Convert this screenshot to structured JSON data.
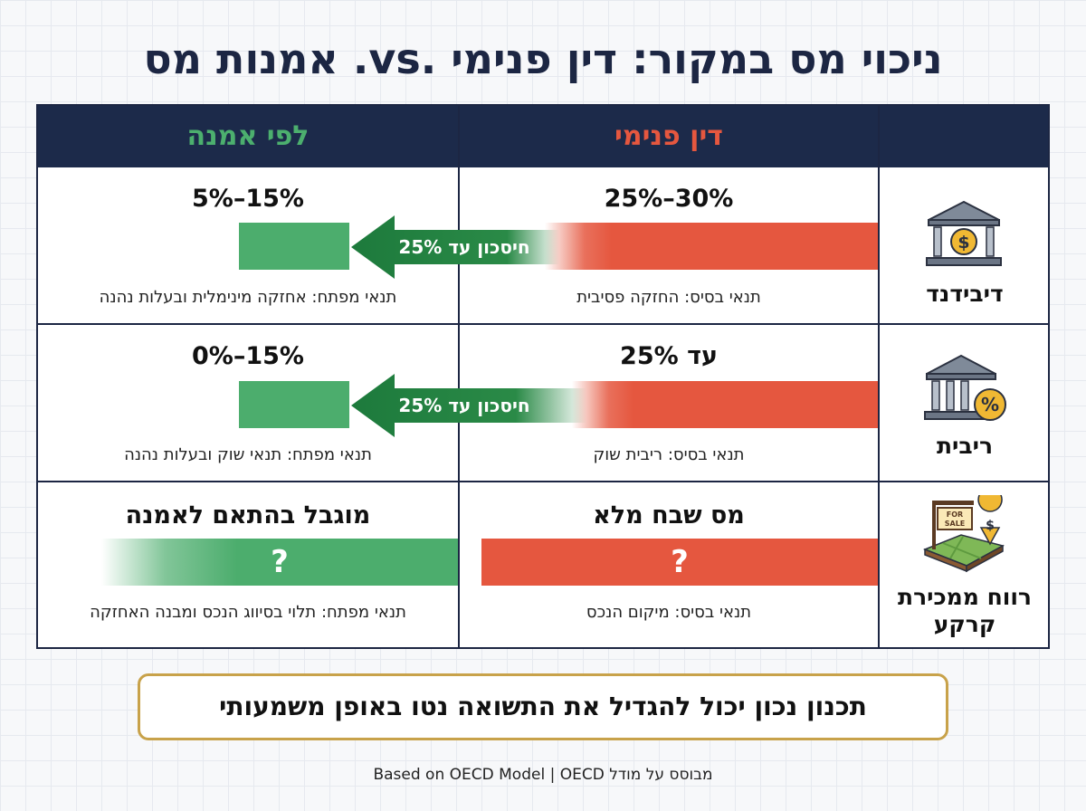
{
  "title": "ניכוי מס במקור: דין פנימי .vs. אמנות מס",
  "columns": {
    "domestic": "דין פנימי",
    "treaty": "לפי אמנה"
  },
  "rows": [
    {
      "category": "דיבידנד",
      "domestic_rate": "25%–30%",
      "domestic_condition": "תנאי בסיס: החזקה פסיבית",
      "savings_label": "חיסכון עד 25%",
      "treaty_rate": "5%–15%",
      "treaty_condition": "תנאי מפתח: אחזקה מינימלית ובעלות נהנה",
      "icon": "bank-dollar-icon"
    },
    {
      "category": "ריבית",
      "domestic_rate": "עד 25%",
      "domestic_condition": "תנאי בסיס: ריבית שוק",
      "savings_label": "חיסכון עד 25%",
      "treaty_rate": "0%–15%",
      "treaty_condition": "תנאי מפתח: תנאי שוק ובעלות נהנה",
      "icon": "bank-percent-icon"
    },
    {
      "category": "רווח ממכירת קרקע",
      "domestic_rate": "מס שבח מלא",
      "domestic_bar_symbol": "?",
      "domestic_condition": "תנאי בסיס: מיקום הנכס",
      "treaty_rate": "מוגבל בהתאם לאמנה",
      "treaty_bar_symbol": "?",
      "treaty_condition": "תנאי מפתח: תלוי בסיווג הנכס ומבנה האחזקה",
      "icon": "land-for-sale-icon",
      "sign_text": "FOR SALE"
    }
  ],
  "bottom_note": "תכנון נכון יכול להגדיל את התשואה נטו באופן משמעותי",
  "source": "Based on OECD Model | OECD מבוסס על מודל",
  "colors": {
    "navy": "#1c2a4a",
    "domestic_red": "#e5573f",
    "treaty_green": "#4cad6d",
    "header_red_text": "#e5573f",
    "header_green_text": "#4caf6e",
    "arrow_green": "#1d7a3c",
    "gold_border": "#c8a24a"
  }
}
